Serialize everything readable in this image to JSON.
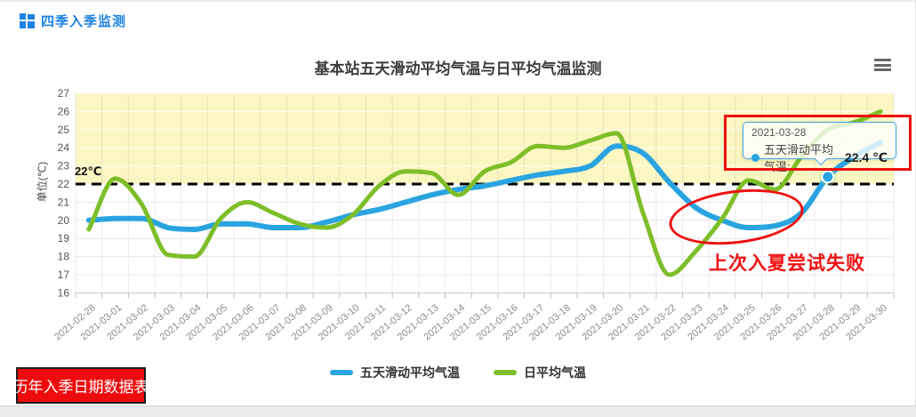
{
  "header": {
    "title": "四季入季监测"
  },
  "chart_data": {
    "type": "line",
    "title": "基本站五天滑动平均气温与日平均气温监测",
    "ylabel": "单位(℃)",
    "ylim": [
      16,
      27
    ],
    "grid": true,
    "legend_position": "bottom",
    "categories": [
      "2021-02-28",
      "2021-03-01",
      "2021-03-02",
      "2021-03-03",
      "2021-03-04",
      "2021-03-05",
      "2021-03-06",
      "2021-03-07",
      "2021-03-08",
      "2021-03-09",
      "2021-03-10",
      "2021-03-11",
      "2021-03-12",
      "2021-03-13",
      "2021-03-14",
      "2021-03-15",
      "2021-03-16",
      "2021-03-17",
      "2021-03-18",
      "2021-03-19",
      "2021-03-20",
      "2021-03-21",
      "2021-03-22",
      "2021-03-23",
      "2021-03-24",
      "2021-03-25",
      "2021-03-26",
      "2021-03-27",
      "2021-03-28",
      "2021-03-29",
      "2021-03-30"
    ],
    "series": [
      {
        "name": "五天滑动平均气温",
        "color": "#2AA4E0",
        "values": [
          20.0,
          20.1,
          20.1,
          19.6,
          19.5,
          19.8,
          19.8,
          19.6,
          19.6,
          19.9,
          20.3,
          20.6,
          21.0,
          21.4,
          21.7,
          21.9,
          22.2,
          22.5,
          22.7,
          23.0,
          24.1,
          23.7,
          22.1,
          20.7,
          20.0,
          19.6,
          19.7,
          20.4,
          22.4,
          23.5,
          24.3
        ]
      },
      {
        "name": "日平均气温",
        "color": "#7DBE29",
        "values": [
          19.5,
          22.3,
          20.9,
          18.1,
          18.0,
          20.1,
          21.0,
          20.4,
          19.8,
          19.6,
          20.3,
          21.9,
          22.7,
          22.6,
          21.4,
          22.7,
          23.2,
          24.1,
          24.0,
          24.4,
          24.8,
          20.4,
          17.0,
          18.3,
          20.1,
          22.2,
          21.7,
          23.5,
          25.0,
          25.4,
          26.0
        ]
      }
    ],
    "threshold": {
      "value": 22,
      "label": "22℃"
    },
    "band": {
      "from": 22,
      "to": 27,
      "color": "#FBF6C2"
    },
    "highlight": {
      "category": "2021-03-28",
      "index": 28,
      "series": "五天滑动平均气温",
      "value": 22.4
    }
  },
  "tooltip": {
    "date": "2021-03-28",
    "series_label": "五天滑动平均气温:",
    "value": "22.4 ℃"
  },
  "annotations": {
    "failed_attempt": "上次入夏尝试失败"
  },
  "button": {
    "label": "历年入季日期数据表"
  },
  "colors": {
    "accent": "#1E82E6",
    "blue_line": "#2AA4E0",
    "green_line": "#7DBE29",
    "band_yellow": "#FBF6C2",
    "annotation_red": "#EF1010",
    "button_red": "#EE0B0E"
  }
}
